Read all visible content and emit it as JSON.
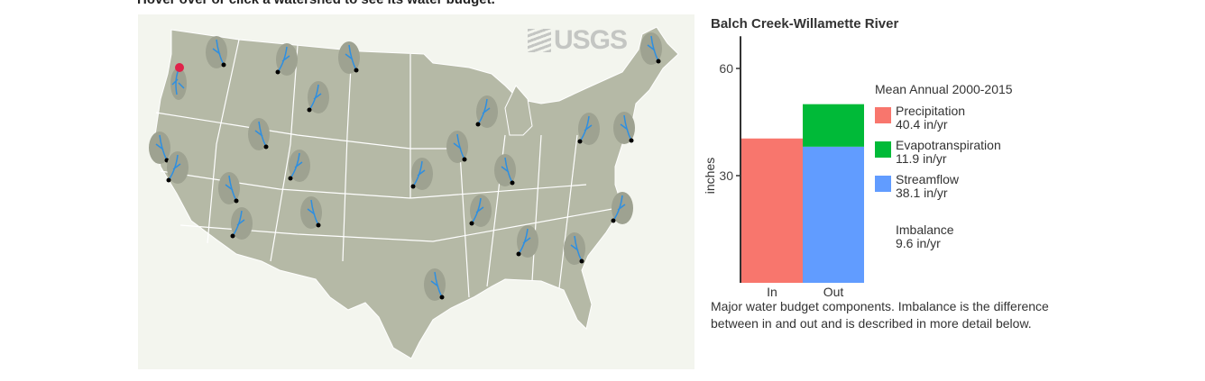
{
  "instruction": "Hover over or click a watershed to see its water budget.",
  "map": {
    "logo_text": "USGS",
    "land_color": "#b5b9a6",
    "river_color": "#2f8fe0",
    "selected_color": "#e0224a"
  },
  "panel": {
    "title": "Balch Creek-Willamette River",
    "legend_title": "Mean Annual 2000-2015",
    "imbalance_label": "Imbalance",
    "imbalance_value": "9.6 in/yr",
    "caption": "Major water budget components. Imbalance is the difference between in and out and is described in more detail below."
  },
  "chart_data": {
    "type": "bar",
    "stacked": true,
    "categories": [
      "In",
      "Out"
    ],
    "ylabel": "inches",
    "yticks": [
      "30",
      "60"
    ],
    "ylim": [
      0,
      69
    ],
    "series": [
      {
        "name": "Precipitation",
        "value_label": "40.4 in/yr",
        "category": "In",
        "value": 40.4,
        "color": "#f8766d"
      },
      {
        "name": "Streamflow",
        "value_label": "38.1 in/yr",
        "category": "Out",
        "value": 38.1,
        "color": "#619cff"
      },
      {
        "name": "Evapotranspiration",
        "value_label": "11.9 in/yr",
        "category": "Out",
        "value": 11.9,
        "color": "#00ba38"
      }
    ]
  }
}
